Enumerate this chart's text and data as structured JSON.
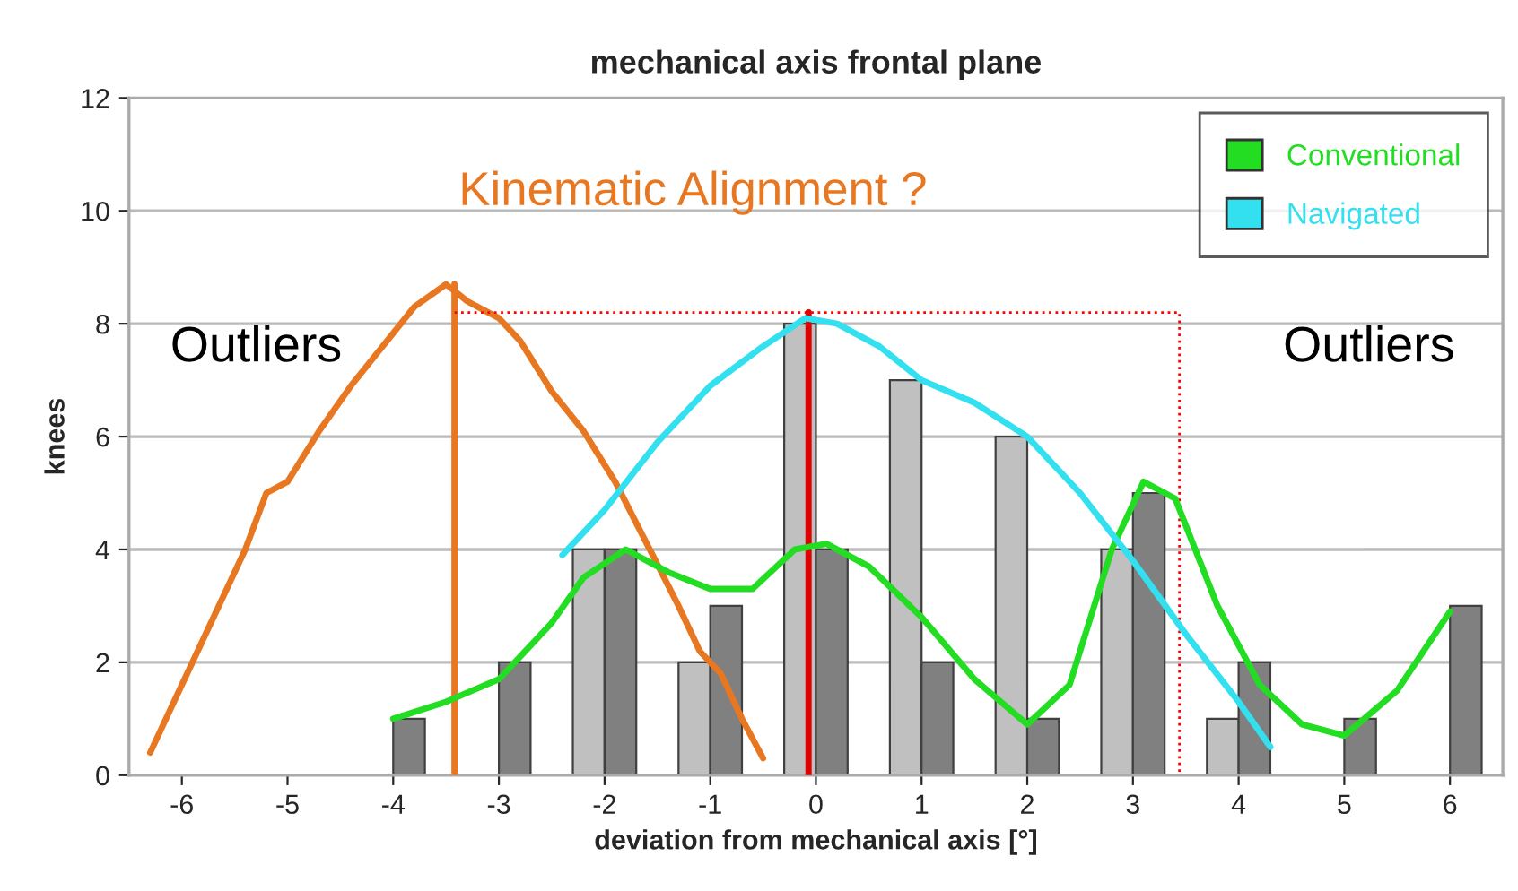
{
  "chart_data": {
    "type": "bar",
    "title": "mechanical axis frontal plane",
    "xlabel": "deviation from mechanical axis [°]",
    "ylabel": "knees",
    "xlim": [
      -6.5,
      6.5
    ],
    "xticks": [
      -6,
      -5,
      -4,
      -3,
      -2,
      -1,
      0,
      1,
      2,
      3,
      4,
      5,
      6
    ],
    "ylim": [
      0,
      12
    ],
    "yticks": [
      0,
      2,
      4,
      6,
      8,
      10,
      12
    ],
    "grid": "y",
    "legend": "top right",
    "annotations": [
      "Kinematic Alignment ?",
      "Outliers",
      "Outliers"
    ],
    "series": [
      {
        "color": "#c0c0c0",
        "x": [
          -2,
          -1,
          0,
          1,
          2,
          3,
          4
        ],
        "values": [
          4,
          2,
          8,
          7,
          6,
          4,
          1
        ]
      },
      {
        "color": "#808080",
        "x": [
          -4,
          -3,
          -2,
          -1,
          0,
          1,
          2,
          3,
          4,
          5,
          6
        ],
        "values": [
          1,
          2,
          4,
          3,
          4,
          2,
          1,
          5,
          2,
          1,
          3
        ]
      },
      {
        "type": "line",
        "color": "#e87722",
        "x": [
          -6.3,
          -6.0,
          -5.7,
          -5.4,
          -5.2,
          -5.0,
          -4.7,
          -4.4,
          -4.1,
          -3.8,
          -3.5,
          -3.3,
          -3.0,
          -2.8,
          -2.5,
          -2.2,
          -1.9,
          -1.6,
          -1.3,
          -1.1,
          -0.9,
          -0.7,
          -0.5
        ],
        "values": [
          0.4,
          1.6,
          2.8,
          4.0,
          5.0,
          5.2,
          6.1,
          6.9,
          7.6,
          8.3,
          8.7,
          8.4,
          8.1,
          7.7,
          6.8,
          6.1,
          5.2,
          4.1,
          3.0,
          2.2,
          1.8,
          1.0,
          0.3
        ]
      },
      {
        "type": "line",
        "color": "#e87722",
        "x": [
          -3.42,
          -3.42
        ],
        "values": [
          0,
          8.7
        ]
      },
      {
        "type": "line",
        "color": "#ff0000",
        "line_style": "dotted",
        "x": [
          -3.42,
          3.44,
          3.44
        ],
        "values": [
          8.2,
          8.2,
          0
        ]
      },
      {
        "type": "line",
        "color": "#e00000",
        "x": [
          -0.07,
          -0.07
        ],
        "values": [
          0,
          8.2
        ]
      },
      {
        "type": "line",
        "name": "Conventional",
        "color": "#22dd22",
        "x": [
          -4.0,
          -3.5,
          -3.0,
          -2.5,
          -2.2,
          -1.8,
          -1.4,
          -1.0,
          -0.6,
          -0.2,
          0.1,
          0.5,
          1.0,
          1.5,
          2.0,
          2.4,
          2.8,
          3.1,
          3.4,
          3.8,
          4.2,
          4.6,
          5.0,
          5.5,
          6.0
        ],
        "values": [
          1.0,
          1.3,
          1.7,
          2.7,
          3.5,
          4.0,
          3.6,
          3.3,
          3.3,
          4.0,
          4.1,
          3.7,
          2.8,
          1.7,
          0.9,
          1.6,
          4.0,
          5.2,
          4.9,
          3.0,
          1.6,
          0.9,
          0.7,
          1.5,
          2.9
        ]
      },
      {
        "type": "line",
        "name": "Navigated",
        "color": "#33e0f0",
        "x": [
          -2.4,
          -2.0,
          -1.5,
          -1.0,
          -0.5,
          -0.1,
          0.2,
          0.6,
          1.0,
          1.5,
          2.0,
          2.5,
          3.0,
          3.5,
          4.0,
          4.3
        ],
        "values": [
          3.9,
          4.7,
          5.9,
          6.9,
          7.6,
          8.1,
          8.0,
          7.6,
          7.0,
          6.6,
          6.0,
          5.0,
          3.8,
          2.5,
          1.3,
          0.5
        ]
      }
    ]
  }
}
